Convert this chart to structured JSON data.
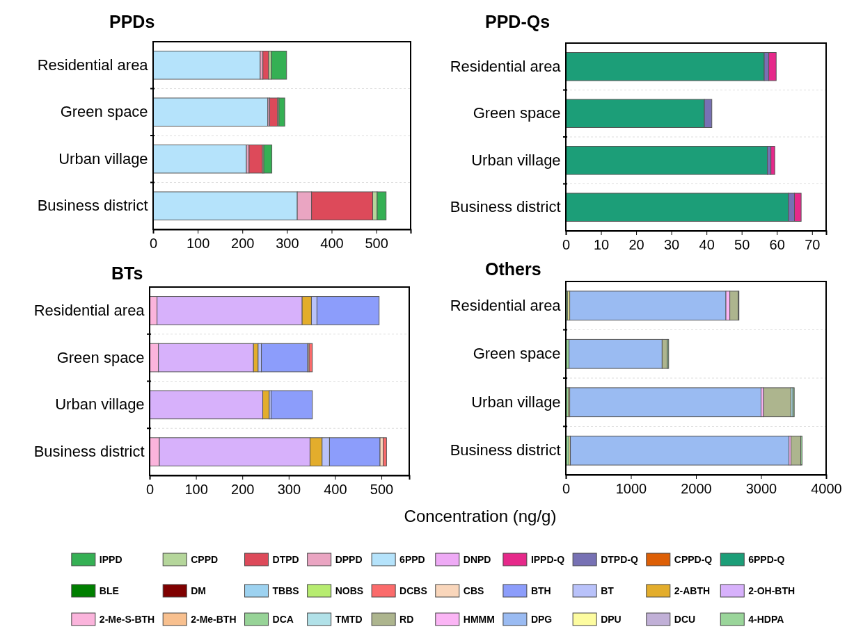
{
  "chart_data": [
    {
      "type": "bar",
      "title": "PPDs",
      "orientation": "horizontal",
      "stacked": true,
      "grid": "y",
      "legend": "bottom",
      "categories": [
        "Residential area",
        "Green space",
        "Urban village",
        "Business district"
      ],
      "xlim": [
        0,
        577
      ],
      "xticks": [
        0,
        100,
        200,
        300,
        400,
        500
      ],
      "series": [
        {
          "name": "DNPD",
          "color": "#eeaaf5",
          "values": [
            0,
            0,
            0,
            0
          ]
        },
        {
          "name": "6PPD",
          "color": "#b5e3fb",
          "values": [
            240,
            257,
            209,
            323
          ]
        },
        {
          "name": "DPPD",
          "color": "#eaa5c2",
          "values": [
            6,
            4,
            6,
            32
          ]
        },
        {
          "name": "DTPD",
          "color": "#dd4a5a",
          "values": [
            13,
            18,
            30,
            137
          ]
        },
        {
          "name": "CPPD",
          "color": "#b5d69b",
          "values": [
            6,
            3,
            3,
            10
          ]
        },
        {
          "name": "IPPD",
          "color": "#35b054",
          "values": [
            34,
            13,
            18,
            20
          ]
        }
      ]
    },
    {
      "type": "bar",
      "title": "PPD-Qs",
      "orientation": "horizontal",
      "stacked": true,
      "grid": "y",
      "legend": "bottom",
      "categories": [
        "Residential area",
        "Green space",
        "Urban village",
        "Business district"
      ],
      "xlim": [
        0,
        74
      ],
      "xticks": [
        0,
        10,
        20,
        30,
        40,
        50,
        60,
        70
      ],
      "series": [
        {
          "name": "6PPD-Q",
          "color": "#1c9e78",
          "values": [
            56.4,
            39.4,
            57.3,
            63.3
          ]
        },
        {
          "name": "CPPD-Q",
          "color": "#dd5f06",
          "values": [
            0,
            0,
            0,
            0
          ]
        },
        {
          "name": "DTPD-Q",
          "color": "#7771b4",
          "values": [
            1.3,
            2.1,
            1.0,
            1.7
          ]
        },
        {
          "name": "IPPD-Q",
          "color": "#e6298a",
          "values": [
            2.1,
            0,
            1.1,
            1.9
          ]
        }
      ]
    },
    {
      "type": "bar",
      "title": "BTs",
      "orientation": "horizontal",
      "stacked": true,
      "grid": "y",
      "legend": "bottom",
      "xlabel": "Concentration (ng/g)",
      "categories": [
        "Residential area",
        "Green space",
        "Urban village",
        "Business district"
      ],
      "xlim": [
        0,
        560
      ],
      "xticks": [
        0,
        100,
        200,
        300,
        400,
        500
      ],
      "series": [
        {
          "name": "2-Me-BTH",
          "color": "#f8c08f",
          "values": [
            0,
            0,
            0,
            0
          ]
        },
        {
          "name": "2-Me-S-BTH",
          "color": "#fbb4dc",
          "values": [
            16,
            19,
            0,
            21
          ]
        },
        {
          "name": "2-OH-BTH",
          "color": "#d7b1fb",
          "values": [
            313,
            205,
            244,
            325
          ]
        },
        {
          "name": "2-ABTH",
          "color": "#e3ad2c",
          "values": [
            20,
            10,
            14,
            26
          ]
        },
        {
          "name": "BT",
          "color": "#b9c2fa",
          "values": [
            12,
            7,
            4,
            16
          ]
        },
        {
          "name": "BTH",
          "color": "#8c9dfb",
          "values": [
            134,
            100,
            89,
            109
          ]
        },
        {
          "name": "CBS",
          "color": "#f9d6bb",
          "values": [
            0,
            3,
            0,
            7
          ]
        },
        {
          "name": "DCBS",
          "color": "#fb6b6b",
          "values": [
            0,
            7,
            0,
            7
          ]
        },
        {
          "name": "NOBS",
          "color": "#b7ec70",
          "values": [
            0,
            0,
            0,
            0
          ]
        },
        {
          "name": "TBBS",
          "color": "#9dd2f0",
          "values": [
            0,
            0,
            0,
            0
          ]
        },
        {
          "name": "DM",
          "color": "#7f0000",
          "values": [
            0,
            0,
            0,
            0
          ]
        },
        {
          "name": "BLE",
          "color": "#007f00",
          "values": [
            0,
            0,
            0,
            0
          ]
        }
      ]
    },
    {
      "type": "bar",
      "title": "Others",
      "orientation": "horizontal",
      "stacked": true,
      "grid": "y",
      "legend": "bottom",
      "categories": [
        "Residential area",
        "Green space",
        "Urban village",
        "Business district"
      ],
      "xlim": [
        0,
        4000
      ],
      "xticks": [
        0,
        1000,
        2000,
        3000,
        4000
      ],
      "series": [
        {
          "name": "4-HDPA",
          "color": "#9ad59a",
          "values": [
            30,
            50,
            40,
            50
          ]
        },
        {
          "name": "DCU",
          "color": "#c1b0d7",
          "values": [
            0,
            0,
            0,
            0
          ]
        },
        {
          "name": "DPU",
          "color": "#fdfca0",
          "values": [
            30,
            0,
            20,
            20
          ]
        },
        {
          "name": "DPG",
          "color": "#9abbf2",
          "values": [
            2400,
            1430,
            2940,
            3360
          ]
        },
        {
          "name": "HMMM",
          "color": "#fbb5f5",
          "values": [
            60,
            0,
            40,
            30
          ]
        },
        {
          "name": "RD",
          "color": "#adb58e",
          "values": [
            130,
            80,
            420,
            150
          ]
        },
        {
          "name": "TMTD",
          "color": "#b1e1e8",
          "values": [
            0,
            0,
            30,
            0
          ]
        },
        {
          "name": "DCA",
          "color": "#97d397",
          "values": [
            10,
            20,
            20,
            20
          ]
        }
      ]
    }
  ]
}
